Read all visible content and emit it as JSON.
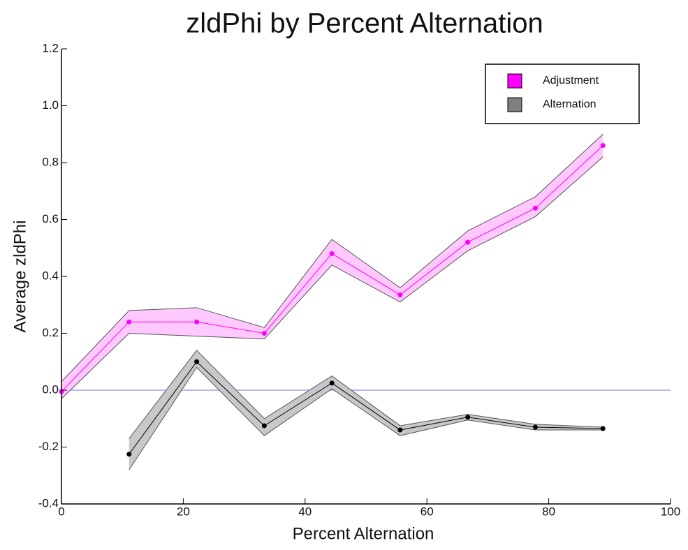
{
  "chart_data": {
    "type": "line",
    "title": "zldPhi by Percent Alternation",
    "x_label": "Percent Alternation",
    "y_label": "Average zldPhi",
    "x": [
      0,
      11.1,
      22.2,
      33.3,
      44.4,
      55.6,
      66.7,
      77.8,
      88.9
    ],
    "series": [
      {
        "name": "Adjustment",
        "color": "#ff00ff",
        "line_color": "#ff00ff",
        "band_color": "#ffc8ff",
        "values": [
          -0.005,
          0.24,
          0.24,
          0.2,
          0.48,
          0.335,
          0.52,
          0.64,
          0.86
        ],
        "lower": [
          -0.03,
          0.2,
          0.19,
          0.18,
          0.44,
          0.31,
          0.49,
          0.61,
          0.82
        ],
        "upper": [
          0.03,
          0.28,
          0.29,
          0.22,
          0.53,
          0.36,
          0.56,
          0.68,
          0.9
        ]
      },
      {
        "name": "Alternation",
        "color": "#808080",
        "line_color": "#000000",
        "band_color": "#c8c8c8",
        "values": [
          null,
          -0.225,
          0.1,
          -0.125,
          0.025,
          -0.14,
          -0.095,
          -0.13,
          -0.135
        ],
        "lower": [
          null,
          -0.28,
          0.08,
          -0.16,
          0.005,
          -0.16,
          -0.105,
          -0.14,
          -0.14
        ],
        "upper": [
          null,
          -0.17,
          0.14,
          -0.1,
          0.05,
          -0.125,
          -0.085,
          -0.12,
          -0.13
        ]
      }
    ],
    "xlim": [
      0,
      100
    ],
    "xticks": [
      0,
      20,
      40,
      60,
      80,
      100
    ],
    "ylim": [
      -0.4,
      1.2
    ],
    "yticks": [
      -0.4,
      -0.2,
      {
        "value": 0,
        "label": "0.0"
      },
      0.2,
      0.4,
      0.6,
      0.8,
      {
        "value": 1,
        "label": "1.0"
      },
      1.2
    ],
    "hline": 0,
    "hline_color": "#9f9fff",
    "legend": "upper right"
  }
}
